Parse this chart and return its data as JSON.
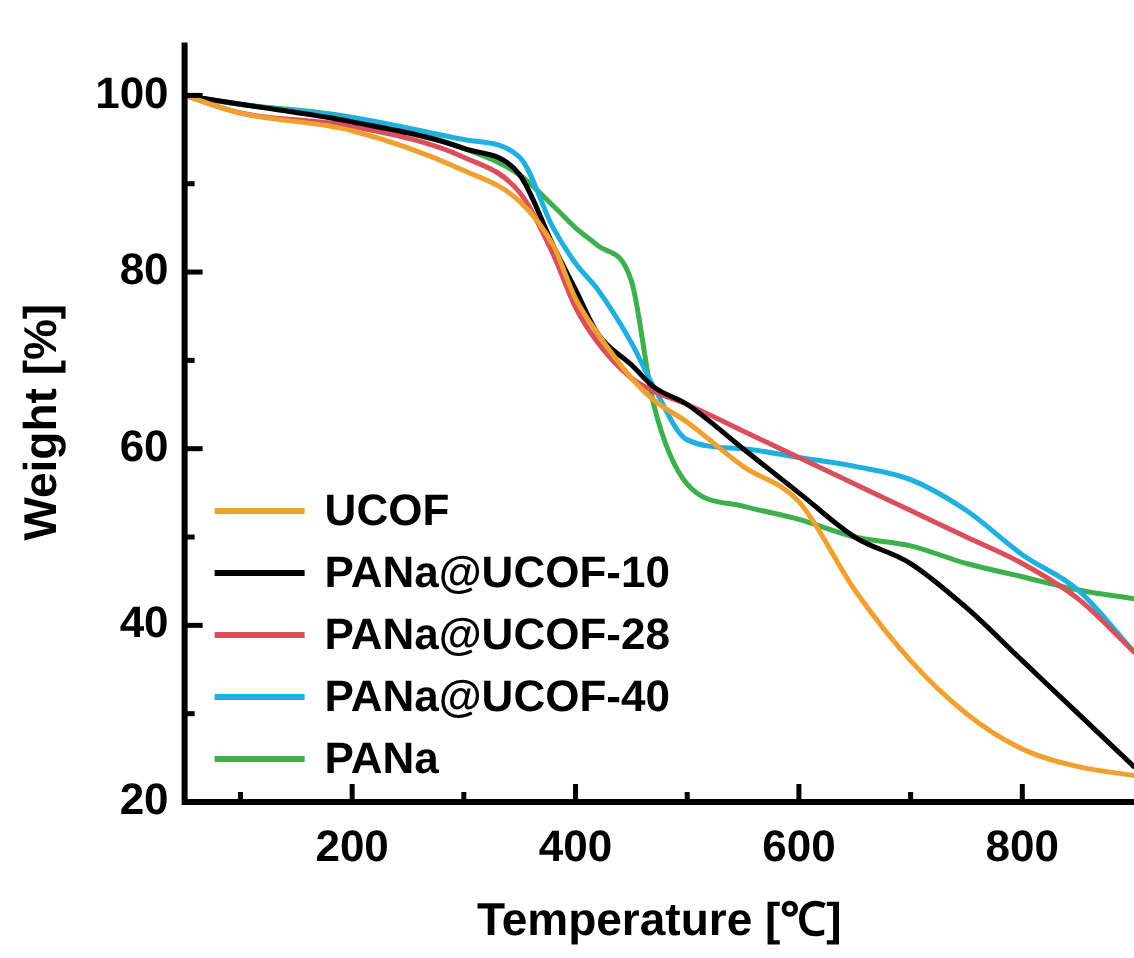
{
  "chart_data": {
    "type": "line",
    "xlabel": "Temperature [℃]",
    "ylabel": "Weight [%]",
    "xlim": [
      50,
      900
    ],
    "xticks": [
      {
        "value": 100,
        "label": null
      },
      200,
      {
        "value": 300,
        "label": null
      },
      400,
      {
        "value": 500,
        "label": null
      },
      600,
      {
        "value": 700,
        "label": null
      },
      800
    ],
    "ylim": [
      20,
      106
    ],
    "yticks": [
      20,
      {
        "value": 30,
        "label": null
      },
      40,
      {
        "value": 50,
        "label": null
      },
      60,
      {
        "value": 70,
        "label": null
      },
      80,
      {
        "value": 90,
        "label": null
      },
      100
    ],
    "grid": false,
    "legend": "bottom left",
    "marker": "none",
    "line_style": "solid",
    "x": [
      50,
      100,
      200,
      300,
      350,
      380,
      400,
      420,
      450,
      470,
      500,
      550,
      600,
      650,
      700,
      750,
      800,
      850,
      900
    ],
    "series": [
      {
        "name": "UCOF",
        "color": "#f0a030",
        "values": [
          100,
          98,
          96,
          91.5,
          88,
          83,
          77,
          73,
          68,
          65.5,
          63,
          58,
          54,
          44,
          36,
          30,
          26,
          24,
          23
        ]
      },
      {
        "name": "PANa@UCOF-10",
        "color": "#000000",
        "values": [
          100,
          99,
          97,
          94,
          91,
          83,
          78,
          73,
          69.5,
          67,
          65,
          60,
          55,
          50,
          47,
          42,
          36,
          30,
          24
        ]
      },
      {
        "name": "PANa@UCOF-28",
        "color": "#d94f5c",
        "values": [
          100,
          98,
          96.5,
          93,
          89,
          82,
          76,
          72,
          68,
          66.5,
          65,
          62,
          59,
          56,
          53,
          50,
          47,
          43,
          37
        ]
      },
      {
        "name": "PANa@UCOF-40",
        "color": "#1fb0e0",
        "values": [
          100,
          99,
          97.5,
          95,
          93,
          85,
          81,
          78,
          72,
          67,
          61,
          60,
          59,
          58,
          56.5,
          53,
          48,
          44,
          37
        ]
      },
      {
        "name": "PANa",
        "color": "#3cb04a",
        "values": [
          100,
          99,
          97.5,
          94,
          91,
          87.5,
          85,
          83,
          79,
          65,
          56,
          53.5,
          52,
          50,
          49,
          47,
          45.5,
          44,
          43
        ]
      }
    ]
  }
}
